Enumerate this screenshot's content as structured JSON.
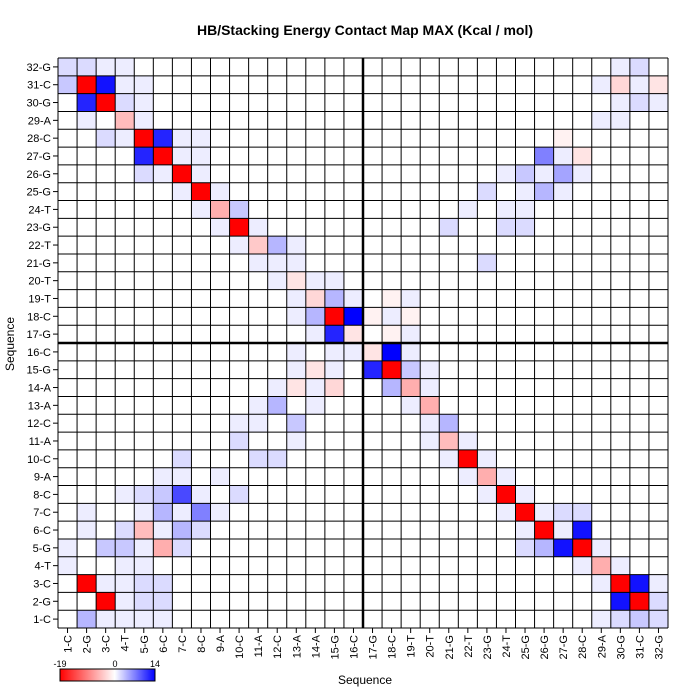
{
  "chart_data": {
    "type": "heatmap",
    "title": "HB/Stacking Energy Contact Map MAX (Kcal / mol)",
    "xlabel": "Sequence",
    "ylabel": "Sequence",
    "labels": [
      "1-C",
      "2-G",
      "3-C",
      "4-T",
      "5-G",
      "6-C",
      "7-C",
      "8-C",
      "9-A",
      "10-C",
      "11-A",
      "12-C",
      "13-A",
      "14-A",
      "15-G",
      "16-C",
      "17-G",
      "18-C",
      "19-T",
      "20-T",
      "21-G",
      "22-T",
      "23-G",
      "24-T",
      "25-G",
      "26-G",
      "27-G",
      "28-C",
      "29-A",
      "30-G",
      "31-C",
      "32-G"
    ],
    "colorbar": {
      "min": -19,
      "mid": 0,
      "max": 14,
      "min_label": "-19",
      "mid_label": "0",
      "max_label": "14",
      "low_color": "#ff0000",
      "mid_color": "#ffffff",
      "high_color": "#0000ff"
    },
    "divider_after": 16,
    "grid": true,
    "cells": [
      [
        1,
        2,
        4
      ],
      [
        1,
        3,
        1
      ],
      [
        1,
        4,
        1
      ],
      [
        1,
        5,
        1
      ],
      [
        1,
        6,
        1
      ],
      [
        1,
        29,
        1
      ],
      [
        1,
        30,
        2
      ],
      [
        1,
        31,
        3
      ],
      [
        1,
        32,
        2
      ],
      [
        2,
        3,
        -19
      ],
      [
        2,
        4,
        1
      ],
      [
        2,
        5,
        2
      ],
      [
        2,
        6,
        2
      ],
      [
        2,
        30,
        13
      ],
      [
        2,
        31,
        -19
      ],
      [
        2,
        32,
        2
      ],
      [
        3,
        2,
        -19
      ],
      [
        3,
        3,
        1
      ],
      [
        3,
        4,
        1
      ],
      [
        3,
        5,
        2
      ],
      [
        3,
        6,
        2
      ],
      [
        3,
        29,
        1
      ],
      [
        3,
        30,
        -19
      ],
      [
        3,
        31,
        13
      ],
      [
        3,
        32,
        1
      ],
      [
        4,
        1,
        1
      ],
      [
        4,
        4,
        1
      ],
      [
        4,
        5,
        1
      ],
      [
        4,
        28,
        1
      ],
      [
        4,
        29,
        -6
      ],
      [
        4,
        30,
        1
      ],
      [
        5,
        1,
        1
      ],
      [
        5,
        3,
        3
      ],
      [
        5,
        4,
        3
      ],
      [
        5,
        5,
        1
      ],
      [
        5,
        6,
        -6
      ],
      [
        5,
        7,
        2
      ],
      [
        5,
        25,
        2
      ],
      [
        5,
        26,
        4
      ],
      [
        5,
        27,
        13
      ],
      [
        5,
        28,
        -19
      ],
      [
        5,
        29,
        1
      ],
      [
        6,
        2,
        1
      ],
      [
        6,
        4,
        2
      ],
      [
        6,
        5,
        -5
      ],
      [
        6,
        6,
        1
      ],
      [
        6,
        7,
        4
      ],
      [
        6,
        8,
        2
      ],
      [
        6,
        25,
        1
      ],
      [
        6,
        26,
        -19
      ],
      [
        6,
        27,
        1
      ],
      [
        6,
        28,
        13
      ],
      [
        7,
        2,
        1
      ],
      [
        7,
        5,
        1
      ],
      [
        7,
        6,
        4
      ],
      [
        7,
        7,
        1
      ],
      [
        7,
        8,
        7
      ],
      [
        7,
        9,
        1
      ],
      [
        7,
        24,
        1
      ],
      [
        7,
        25,
        -19
      ],
      [
        7,
        26,
        1
      ],
      [
        7,
        27,
        2
      ],
      [
        7,
        28,
        2
      ],
      [
        8,
        4,
        1
      ],
      [
        8,
        5,
        2
      ],
      [
        8,
        6,
        3
      ],
      [
        8,
        7,
        10
      ],
      [
        8,
        8,
        1
      ],
      [
        8,
        10,
        2
      ],
      [
        8,
        23,
        1
      ],
      [
        8,
        24,
        -19
      ],
      [
        8,
        25,
        1
      ],
      [
        9,
        6,
        1
      ],
      [
        9,
        7,
        1
      ],
      [
        9,
        9,
        1
      ],
      [
        9,
        22,
        1
      ],
      [
        9,
        23,
        -6
      ],
      [
        9,
        24,
        1
      ],
      [
        10,
        7,
        2
      ],
      [
        10,
        11,
        2
      ],
      [
        10,
        12,
        2
      ],
      [
        10,
        21,
        1
      ],
      [
        10,
        22,
        -19
      ],
      [
        10,
        23,
        1
      ],
      [
        11,
        10,
        2
      ],
      [
        11,
        13,
        1
      ],
      [
        11,
        20,
        1
      ],
      [
        11,
        21,
        -5
      ],
      [
        11,
        22,
        1
      ],
      [
        12,
        10,
        1
      ],
      [
        12,
        11,
        1
      ],
      [
        12,
        13,
        3
      ],
      [
        12,
        20,
        1
      ],
      [
        12,
        21,
        4
      ],
      [
        13,
        11,
        1
      ],
      [
        13,
        12,
        4
      ],
      [
        13,
        14,
        1
      ],
      [
        13,
        19,
        1
      ],
      [
        13,
        20,
        -6
      ],
      [
        14,
        12,
        1
      ],
      [
        14,
        13,
        -2
      ],
      [
        14,
        14,
        1
      ],
      [
        14,
        15,
        -3
      ],
      [
        14,
        18,
        4
      ],
      [
        14,
        19,
        -6
      ],
      [
        14,
        20,
        1
      ],
      [
        15,
        13,
        1
      ],
      [
        15,
        14,
        -2
      ],
      [
        15,
        15,
        1
      ],
      [
        15,
        17,
        12
      ],
      [
        15,
        18,
        -19
      ],
      [
        15,
        19,
        3
      ],
      [
        15,
        20,
        1
      ],
      [
        16,
        13,
        1
      ],
      [
        16,
        15,
        1
      ],
      [
        16,
        16,
        1
      ],
      [
        16,
        17,
        -2
      ],
      [
        16,
        18,
        14
      ],
      [
        16,
        19,
        1
      ],
      [
        17,
        14,
        1
      ],
      [
        17,
        15,
        12
      ],
      [
        17,
        16,
        -2
      ],
      [
        17,
        18,
        -1
      ],
      [
        17,
        19,
        1
      ],
      [
        18,
        13,
        1
      ],
      [
        18,
        14,
        4
      ],
      [
        18,
        15,
        -19
      ],
      [
        18,
        16,
        14
      ],
      [
        18,
        17,
        -1
      ],
      [
        18,
        18,
        1
      ],
      [
        18,
        19,
        -1
      ],
      [
        19,
        13,
        1
      ],
      [
        19,
        14,
        -3
      ],
      [
        19,
        15,
        4
      ],
      [
        19,
        16,
        1
      ],
      [
        19,
        18,
        -1
      ],
      [
        19,
        19,
        1
      ],
      [
        20,
        12,
        1
      ],
      [
        20,
        13,
        -2
      ],
      [
        20,
        14,
        1
      ],
      [
        20,
        15,
        1
      ],
      [
        21,
        11,
        1
      ],
      [
        21,
        12,
        1
      ],
      [
        21,
        13,
        1
      ],
      [
        21,
        23,
        2
      ],
      [
        22,
        10,
        1
      ],
      [
        22,
        11,
        -4
      ],
      [
        22,
        12,
        4
      ],
      [
        22,
        13,
        1
      ],
      [
        23,
        9,
        1
      ],
      [
        23,
        10,
        -19
      ],
      [
        23,
        11,
        1
      ],
      [
        23,
        21,
        2
      ],
      [
        23,
        24,
        2
      ],
      [
        23,
        25,
        2
      ],
      [
        24,
        8,
        1
      ],
      [
        24,
        9,
        -6
      ],
      [
        24,
        10,
        3
      ],
      [
        24,
        22,
        1
      ],
      [
        24,
        24,
        1
      ],
      [
        24,
        25,
        1
      ],
      [
        25,
        7,
        1
      ],
      [
        25,
        8,
        -19
      ],
      [
        25,
        9,
        1
      ],
      [
        25,
        23,
        2
      ],
      [
        25,
        25,
        1
      ],
      [
        25,
        26,
        4
      ],
      [
        25,
        27,
        1
      ],
      [
        26,
        5,
        2
      ],
      [
        26,
        6,
        1
      ],
      [
        26,
        7,
        -19
      ],
      [
        26,
        8,
        1
      ],
      [
        26,
        24,
        1
      ],
      [
        26,
        25,
        3
      ],
      [
        26,
        26,
        1
      ],
      [
        26,
        27,
        5
      ],
      [
        26,
        28,
        1
      ],
      [
        27,
        5,
        12
      ],
      [
        27,
        6,
        -19
      ],
      [
        27,
        7,
        1
      ],
      [
        27,
        8,
        1
      ],
      [
        27,
        26,
        7
      ],
      [
        27,
        27,
        1
      ],
      [
        27,
        28,
        -2
      ],
      [
        28,
        3,
        2
      ],
      [
        28,
        4,
        1
      ],
      [
        28,
        5,
        -19
      ],
      [
        28,
        6,
        12
      ],
      [
        28,
        7,
        1
      ],
      [
        28,
        8,
        1
      ],
      [
        28,
        27,
        -1
      ],
      [
        29,
        2,
        1
      ],
      [
        29,
        4,
        -5
      ],
      [
        29,
        5,
        1
      ],
      [
        29,
        29,
        1
      ],
      [
        29,
        30,
        1
      ],
      [
        30,
        2,
        12
      ],
      [
        30,
        3,
        -19
      ],
      [
        30,
        4,
        2
      ],
      [
        30,
        5,
        1
      ],
      [
        30,
        30,
        1
      ],
      [
        30,
        31,
        2
      ],
      [
        30,
        32,
        1
      ],
      [
        31,
        1,
        3
      ],
      [
        31,
        2,
        -19
      ],
      [
        31,
        3,
        13
      ],
      [
        31,
        4,
        1
      ],
      [
        31,
        5,
        1
      ],
      [
        31,
        29,
        1
      ],
      [
        31,
        30,
        -3
      ],
      [
        31,
        31,
        1
      ],
      [
        31,
        32,
        -2
      ],
      [
        32,
        1,
        2
      ],
      [
        32,
        2,
        2
      ],
      [
        32,
        3,
        1
      ],
      [
        32,
        4,
        1
      ],
      [
        32,
        30,
        1
      ],
      [
        32,
        31,
        2
      ]
    ]
  }
}
